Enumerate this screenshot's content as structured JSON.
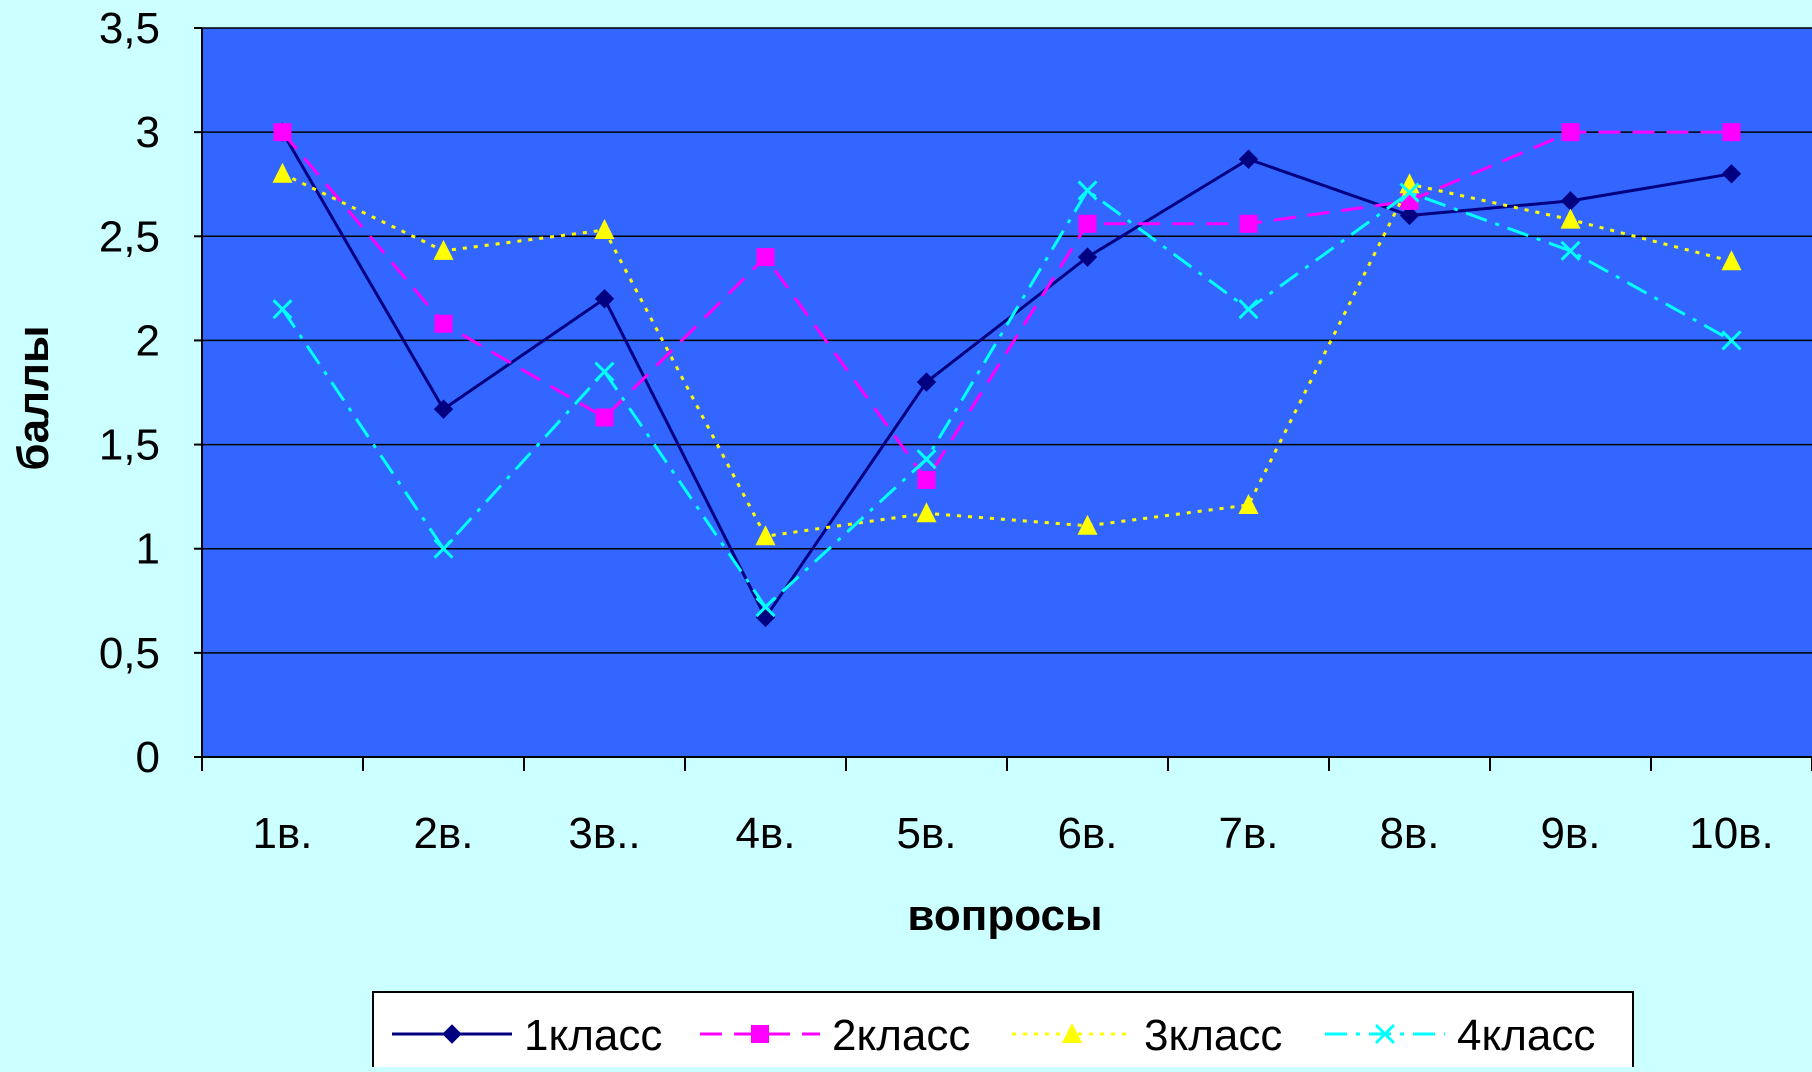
{
  "chart_data": {
    "type": "line",
    "xlabel": "вопросы",
    "ylabel": "баллы",
    "categories": [
      "1в.",
      "2в.",
      "3в..",
      "4в.",
      "5в.",
      "6в.",
      "7в.",
      "8в.",
      "9в.",
      "10в."
    ],
    "ylim": [
      0,
      3.5
    ],
    "yticks": [
      0,
      0.5,
      1,
      1.5,
      2,
      2.5,
      3,
      3.5
    ],
    "ytick_labels": [
      "0",
      "0,5",
      "1",
      "1,5",
      "2",
      "2,5",
      "3",
      "3,5"
    ],
    "grid": true,
    "legend_position": "bottom",
    "plot_background": "#3366ff",
    "page_background": "#ccffff",
    "series": [
      {
        "name": "1класс",
        "values": [
          3.0,
          1.67,
          2.2,
          0.67,
          1.8,
          2.4,
          2.87,
          2.6,
          2.67,
          2.8
        ],
        "color": "#000080",
        "dash": "solid",
        "marker": "diamond"
      },
      {
        "name": "2класс",
        "values": [
          3.0,
          2.08,
          1.63,
          2.4,
          1.33,
          2.56,
          2.56,
          2.67,
          3.0,
          3.0
        ],
        "color": "#ff00ff",
        "dash": "dashed",
        "marker": "square"
      },
      {
        "name": "3класс",
        "values": [
          2.8,
          2.43,
          2.53,
          1.06,
          1.17,
          1.11,
          1.21,
          2.75,
          2.58,
          2.38
        ],
        "color": "#ffff00",
        "dash": "dotted",
        "marker": "triangle"
      },
      {
        "name": "4класс",
        "values": [
          2.15,
          1.0,
          1.85,
          0.72,
          1.43,
          2.72,
          2.15,
          2.71,
          2.43,
          2.0
        ],
        "color": "#00ffff",
        "dash": "dashdot",
        "marker": "x"
      }
    ]
  }
}
